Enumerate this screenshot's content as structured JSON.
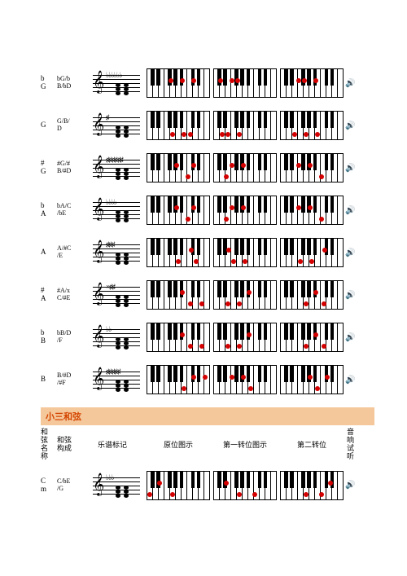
{
  "section_title": "小三和弦",
  "headers": {
    "name": "和弦名称",
    "composition": "和弦构成",
    "notation": "乐谱标记",
    "root": "原位图示",
    "inv1": "第一转位图示",
    "inv2": "第二转位",
    "audio": "音响试听"
  },
  "black_key_offsets": [
    5.1,
    12.2,
    26.3,
    33.4,
    40.5,
    54.6,
    61.7
  ],
  "chords": [
    {
      "name1": "b",
      "name2": "G",
      "comp1": "bG/b",
      "comp2": "B/bD",
      "accidentals": "♭♭♭♭♭♭",
      "kb": [
        {
          "dots": [
            {
              "p": 29.8,
              "b": true
            },
            {
              "p": 44.0,
              "b": true
            },
            {
              "p": 58.1,
              "b": true
            }
          ]
        },
        {
          "dots": [
            {
              "p": 8.6,
              "b": true
            },
            {
              "p": 22.7,
              "b": true
            },
            {
              "p": 29.8,
              "b": true
            }
          ]
        },
        {
          "dots": [
            {
              "p": 22.7,
              "b": true
            },
            {
              "p": 29.8,
              "b": true
            },
            {
              "p": 44.0,
              "b": true
            }
          ]
        }
      ]
    },
    {
      "name1": "G",
      "name2": "",
      "comp1": "G/B/",
      "comp2": "D",
      "accidentals": "♯",
      "kb": [
        {
          "dots": [
            {
              "p": 32.1,
              "b": false
            },
            {
              "p": 46.4,
              "b": false
            },
            {
              "p": 53.5,
              "b": false
            }
          ]
        },
        {
          "dots": [
            {
              "p": 10.7,
              "b": false
            },
            {
              "p": 17.8,
              "b": false
            },
            {
              "p": 32.1,
              "b": false
            }
          ]
        },
        {
          "dots": [
            {
              "p": 17.8,
              "b": false
            },
            {
              "p": 32.1,
              "b": false
            },
            {
              "p": 46.4,
              "b": false
            }
          ]
        }
      ]
    },
    {
      "name1": "#",
      "name2": "G",
      "comp1": "#G/#",
      "comp2": "B/#D",
      "accidentals": "♯♯♯♯♯♯",
      "kb": [
        {
          "dots": [
            {
              "p": 36.9,
              "b": true
            },
            {
              "p": 51.1,
              "b": false
            },
            {
              "p": 58.1,
              "b": true
            }
          ]
        },
        {
          "dots": [
            {
              "p": 15.7,
              "b": false
            },
            {
              "p": 22.7,
              "b": true
            },
            {
              "p": 36.9,
              "b": true
            }
          ]
        },
        {
          "dots": [
            {
              "p": 22.7,
              "b": true
            },
            {
              "p": 36.9,
              "b": true
            },
            {
              "p": 51.1,
              "b": false
            }
          ]
        }
      ]
    },
    {
      "name1": "b",
      "name2": "A",
      "comp1": "bA/C",
      "comp2": "/bE",
      "accidentals": "♭♭♭♭",
      "kb": [
        {
          "dots": [
            {
              "p": 36.9,
              "b": true
            },
            {
              "p": 51.1,
              "b": false
            },
            {
              "p": 58.1,
              "b": true
            }
          ]
        },
        {
          "dots": [
            {
              "p": 15.7,
              "b": false
            },
            {
              "p": 22.7,
              "b": true
            },
            {
              "p": 36.9,
              "b": true
            }
          ]
        },
        {
          "dots": [
            {
              "p": 22.7,
              "b": true
            },
            {
              "p": 36.9,
              "b": true
            },
            {
              "p": 51.1,
              "b": false
            }
          ]
        }
      ]
    },
    {
      "name1": "A",
      "name2": "",
      "comp1": "A/#C",
      "comp2": "/E",
      "accidentals": "♯♯♯",
      "kb": [
        {
          "dots": [
            {
              "p": 39.2,
              "b": false
            },
            {
              "p": 54.6,
              "b": true
            },
            {
              "p": 60.7,
              "b": false
            }
          ]
        },
        {
          "dots": [
            {
              "p": 19.2,
              "b": true
            },
            {
              "p": 24.9,
              "b": false
            },
            {
              "p": 39.2,
              "b": false
            }
          ]
        },
        {
          "dots": [
            {
              "p": 24.9,
              "b": false
            },
            {
              "p": 39.2,
              "b": false
            },
            {
              "p": 54.6,
              "b": true
            }
          ]
        }
      ]
    },
    {
      "name1": "#",
      "name2": "A",
      "comp1": "#A/x",
      "comp2": "C/#E",
      "accidentals": "×♯♯",
      "kb": [
        {
          "dots": [
            {
              "p": 44.0,
              "b": true
            },
            {
              "p": 53.5,
              "b": false
            },
            {
              "p": 67.8,
              "b": false
            }
          ]
        },
        {
          "dots": [
            {
              "p": 17.8,
              "b": false
            },
            {
              "p": 32.1,
              "b": false
            },
            {
              "p": 44.0,
              "b": true
            }
          ]
        },
        {
          "dots": [
            {
              "p": 32.1,
              "b": false
            },
            {
              "p": 44.0,
              "b": true
            },
            {
              "p": 53.5,
              "b": false
            }
          ]
        }
      ]
    },
    {
      "name1": "b",
      "name2": "B",
      "comp1": "bB/D",
      "comp2": "/F",
      "accidentals": "♭♭",
      "kb": [
        {
          "dots": [
            {
              "p": 44.0,
              "b": true
            },
            {
              "p": 53.5,
              "b": false
            },
            {
              "p": 67.8,
              "b": false
            }
          ]
        },
        {
          "dots": [
            {
              "p": 17.8,
              "b": false
            },
            {
              "p": 32.1,
              "b": false
            },
            {
              "p": 44.0,
              "b": true
            }
          ]
        },
        {
          "dots": [
            {
              "p": 32.1,
              "b": false
            },
            {
              "p": 44.0,
              "b": true
            },
            {
              "p": 53.5,
              "b": false
            }
          ]
        }
      ]
    },
    {
      "name1": "B",
      "name2": "",
      "comp1": "B/#D",
      "comp2": "/#F",
      "accidentals": "♯♯♯♯♯",
      "kb": [
        {
          "dots": [
            {
              "p": 46.4,
              "b": false
            },
            {
              "p": 58.1,
              "b": true
            },
            {
              "p": 72.3,
              "b": true
            }
          ]
        },
        {
          "dots": [
            {
              "p": 22.7,
              "b": true
            },
            {
              "p": 36.9,
              "b": true
            },
            {
              "p": 46.4,
              "b": false
            }
          ]
        },
        {
          "dots": [
            {
              "p": 36.9,
              "b": true
            },
            {
              "p": 46.4,
              "b": false
            },
            {
              "p": 58.1,
              "b": true
            }
          ]
        }
      ]
    }
  ],
  "minor_chords": [
    {
      "name1": "C",
      "name2": "m",
      "comp1": "C/bE",
      "comp2": "/G",
      "accidentals": "♭♭♭",
      "kb": [
        {
          "dots": [
            {
              "p": 3.5,
              "b": false
            },
            {
              "p": 15.7,
              "b": true
            },
            {
              "p": 32.1,
              "b": false
            }
          ]
        },
        {
          "dots": [
            {
              "p": 15.7,
              "b": true
            },
            {
              "p": 32.1,
              "b": false
            },
            {
              "p": 51.1,
              "b": false
            }
          ]
        },
        {
          "dots": [
            {
              "p": 32.1,
              "b": false
            },
            {
              "p": 51.1,
              "b": false
            },
            {
              "p": 61.7,
              "b": true
            }
          ]
        }
      ]
    }
  ]
}
